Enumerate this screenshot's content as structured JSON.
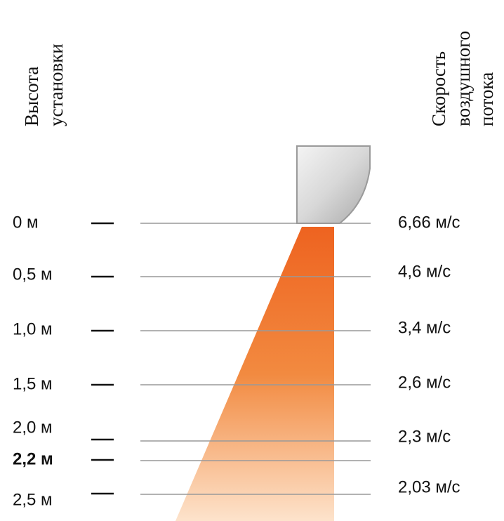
{
  "left_heading": [
    "Высота",
    "установки"
  ],
  "right_heading": [
    "Скорость",
    "воздушного",
    "потока"
  ],
  "heights": [
    {
      "label": "0 м"
    },
    {
      "label": "0,5 м"
    },
    {
      "label": "1,0 м"
    },
    {
      "label": "1,5 м"
    },
    {
      "label": "2,0 м"
    },
    {
      "label": "2,2 м",
      "bold": true
    },
    {
      "label": "2,5 м"
    }
  ],
  "speeds": [
    "6,66 м/с",
    "4,6 м/с",
    "3,4 м/с",
    "2,6 м/с",
    "2,3 м/с",
    "2,03 м/с"
  ]
}
